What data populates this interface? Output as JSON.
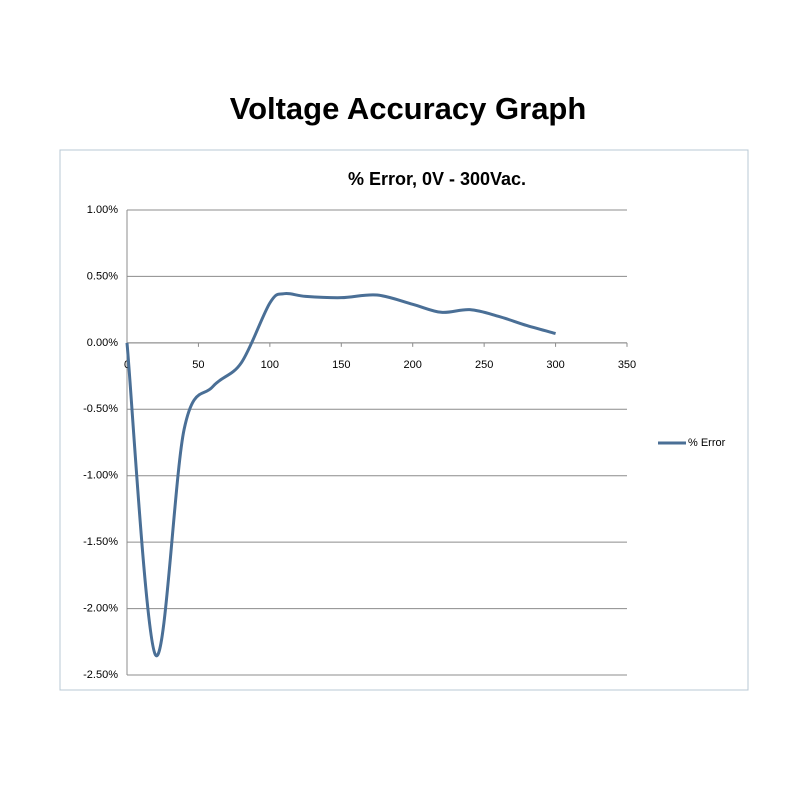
{
  "chart_data": {
    "type": "line",
    "title": "Voltage Accuracy Graph",
    "subtitle": "% Error, 0V - 300Vac.",
    "x": [
      0,
      20,
      40,
      60,
      80,
      100,
      110,
      125,
      150,
      175,
      200,
      220,
      240,
      260,
      280,
      300
    ],
    "series": [
      {
        "name": "% Error",
        "color": "#4a6f96",
        "values": [
          0,
          -2.35,
          -0.65,
          -0.33,
          -0.15,
          0.3,
          0.37,
          0.35,
          0.34,
          0.36,
          0.29,
          0.23,
          0.25,
          0.2,
          0.13,
          0.07
        ]
      }
    ],
    "xlim": [
      0,
      350
    ],
    "xticks": [
      0,
      50,
      100,
      150,
      200,
      250,
      300,
      350
    ],
    "ylim": [
      -2.5,
      1
    ],
    "yticks": [
      {
        "value": 1,
        "label": "1.00%"
      },
      {
        "value": 0.5,
        "label": "0.50%"
      },
      {
        "value": 0,
        "label": "0.00%"
      },
      {
        "value": -0.5,
        "label": "-0.50%"
      },
      {
        "value": -1,
        "label": "-1.00%"
      },
      {
        "value": -1.5,
        "label": "-1.50%"
      },
      {
        "value": -2,
        "label": "-2.00%"
      },
      {
        "value": -2.5,
        "label": "-2.50%"
      }
    ],
    "grid": true,
    "legend": "right"
  }
}
